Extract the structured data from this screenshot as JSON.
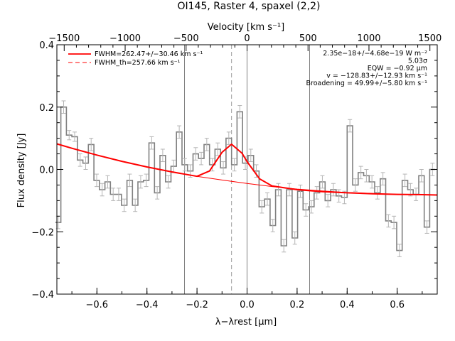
{
  "chart_data": {
    "type": "line",
    "title": "OI145, Raster 4, spaxel (2,2)",
    "top_axis_label": "Velocity [km s⁻¹]",
    "xlabel": "λ−λrest [μm]",
    "ylabel": "Flux density [Jy]",
    "xlim": [
      -0.76,
      0.76
    ],
    "ylim": [
      -0.4,
      0.4
    ],
    "top_xlim": [
      -1560,
      1560
    ],
    "x_ticks": [
      -0.6,
      -0.4,
      -0.2,
      0.0,
      0.2,
      0.4,
      0.6
    ],
    "x_tick_labels": [
      "−0.6",
      "−0.4",
      "−0.2",
      "0.0",
      "0.2",
      "0.4",
      "0.6"
    ],
    "y_ticks": [
      -0.4,
      -0.2,
      0.0,
      0.2,
      0.4
    ],
    "y_tick_labels": [
      "−0.4",
      "−0.2",
      "0.0",
      "0.2",
      "0.4"
    ],
    "top_ticks": [
      -1500,
      -1000,
      -500,
      0,
      500,
      1000,
      1500
    ],
    "top_tick_labels": [
      "−1500",
      "−1000",
      "−500",
      "0",
      "500",
      "1000",
      "1500"
    ],
    "vertical_lines": [
      -0.25,
      0.0,
      0.25
    ],
    "dashed_line": -0.062,
    "legend": [
      {
        "label": "FWHM=262.47+/−30.46 km s⁻¹",
        "style": "solid",
        "color": "#ff0000"
      },
      {
        "label": "FWHM_th=257.66 km s⁻¹",
        "style": "dashed",
        "color": "#ff0000"
      }
    ],
    "annotations": [
      "2.35e−18+/−4.68e−19 W m⁻²",
      "5.03σ",
      "EQW = −0.92 μm",
      "v = −128.83+/−12.93 km s⁻¹",
      "Broadening = 49.99+/−5.80 km s⁻¹"
    ],
    "series": [
      {
        "kind": "spectrum",
        "color": "#808080",
        "x": [
          -0.755,
          -0.733,
          -0.711,
          -0.689,
          -0.667,
          -0.645,
          -0.623,
          -0.601,
          -0.579,
          -0.557,
          -0.535,
          -0.513,
          -0.491,
          -0.469,
          -0.447,
          -0.425,
          -0.403,
          -0.381,
          -0.359,
          -0.337,
          -0.315,
          -0.293,
          -0.271,
          -0.249,
          -0.227,
          -0.205,
          -0.183,
          -0.161,
          -0.139,
          -0.117,
          -0.095,
          -0.073,
          -0.051,
          -0.029,
          -0.007,
          0.015,
          0.037,
          0.059,
          0.081,
          0.103,
          0.125,
          0.147,
          0.169,
          0.191,
          0.213,
          0.235,
          0.257,
          0.279,
          0.301,
          0.323,
          0.345,
          0.367,
          0.389,
          0.411,
          0.433,
          0.455,
          0.477,
          0.499,
          0.521,
          0.543,
          0.565,
          0.587,
          0.609,
          0.631,
          0.653,
          0.675,
          0.697,
          0.719,
          0.741
        ],
        "y": [
          -0.17,
          0.2,
          0.11,
          0.105,
          0.03,
          0.02,
          0.08,
          -0.035,
          -0.065,
          -0.04,
          -0.08,
          -0.08,
          -0.115,
          -0.035,
          -0.115,
          -0.04,
          -0.035,
          0.085,
          -0.075,
          0.045,
          -0.04,
          0.01,
          0.12,
          0.015,
          -0.005,
          0.05,
          0.035,
          0.08,
          0.015,
          0.065,
          0.005,
          0.1,
          0.015,
          0.185,
          0.02,
          0.045,
          -0.005,
          -0.12,
          -0.095,
          -0.18,
          -0.065,
          -0.245,
          -0.065,
          -0.22,
          -0.07,
          -0.13,
          -0.12,
          -0.075,
          -0.04,
          -0.1,
          -0.065,
          -0.085,
          -0.09,
          0.14,
          -0.05,
          -0.01,
          -0.02,
          -0.04,
          -0.075,
          -0.03,
          -0.165,
          -0.17,
          -0.26,
          -0.035,
          -0.065,
          -0.08,
          -0.02,
          -0.185,
          0.0
        ],
        "errors": [
          0.02,
          0.02,
          0.015,
          0.015,
          0.02,
          0.02,
          0.02,
          0.02,
          0.02,
          0.02,
          0.02,
          0.02,
          0.02,
          0.02,
          0.02,
          0.02,
          0.02,
          0.02,
          0.02,
          0.02,
          0.02,
          0.02,
          0.02,
          0.02,
          0.02,
          0.02,
          0.02,
          0.02,
          0.02,
          0.02,
          0.02,
          0.02,
          0.02,
          0.02,
          0.02,
          0.02,
          0.02,
          0.02,
          0.02,
          0.02,
          0.02,
          0.02,
          0.02,
          0.02,
          0.02,
          0.02,
          0.02,
          0.02,
          0.02,
          0.02,
          0.02,
          0.02,
          0.02,
          0.02,
          0.02,
          0.02,
          0.02,
          0.02,
          0.02,
          0.02,
          0.02,
          0.02,
          0.02,
          0.02,
          0.02,
          0.02,
          0.02,
          0.02,
          0.02
        ]
      },
      {
        "kind": "fit",
        "color": "#ff0000",
        "x": [
          -0.76,
          -0.7,
          -0.6,
          -0.5,
          -0.4,
          -0.3,
          -0.2,
          -0.15,
          -0.1,
          -0.062,
          -0.02,
          0.0,
          0.05,
          0.1,
          0.2,
          0.3,
          0.4,
          0.5,
          0.6,
          0.7,
          0.76
        ],
        "y": [
          0.082,
          0.068,
          0.046,
          0.026,
          0.008,
          -0.008,
          -0.022,
          -0.005,
          0.055,
          0.081,
          0.052,
          0.025,
          -0.03,
          -0.053,
          -0.065,
          -0.071,
          -0.075,
          -0.078,
          -0.08,
          -0.081,
          -0.082
        ]
      },
      {
        "kind": "baseline",
        "color": "#ff0000",
        "x": [
          -0.2,
          -0.1,
          0.0,
          0.1,
          0.2,
          0.3,
          0.4,
          0.5,
          0.6,
          0.7,
          0.76
        ],
        "y": [
          -0.022,
          -0.034,
          -0.045,
          -0.055,
          -0.063,
          -0.069,
          -0.074,
          -0.077,
          -0.08,
          -0.081,
          -0.082
        ]
      }
    ]
  }
}
